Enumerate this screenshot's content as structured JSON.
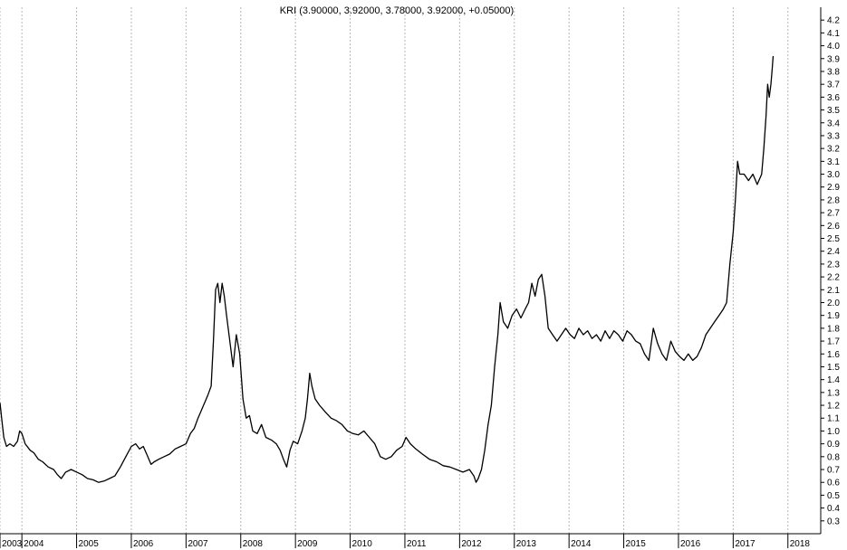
{
  "chart_data": {
    "type": "line",
    "title": "KRI (3.90000, 3.92000, 3.78000, 3.92000, +0.05000)",
    "xlabel": "",
    "ylabel": "",
    "xlim": [
      2003.0,
      2018.0
    ],
    "ylim": [
      0.2,
      4.3
    ],
    "y_ticks": [
      0.3,
      0.4,
      0.5,
      0.6,
      0.7,
      0.8,
      0.9,
      1.0,
      1.1,
      1.2,
      1.3,
      1.4,
      1.5,
      1.6,
      1.7,
      1.8,
      1.9,
      2.0,
      2.1,
      2.2,
      2.3,
      2.4,
      2.5,
      2.6,
      2.7,
      2.8,
      2.9,
      3.0,
      3.1,
      3.2,
      3.3,
      3.4,
      3.5,
      3.6,
      3.7,
      3.8,
      3.9,
      4.0,
      4.1,
      4.2
    ],
    "x_ticks": [
      {
        "label": "2003",
        "x": 2003.0
      },
      {
        "label": "2004",
        "x": 2003.4
      },
      {
        "label": "2005",
        "x": 2004.4
      },
      {
        "label": "2006",
        "x": 2005.4
      },
      {
        "label": "2007",
        "x": 2006.4
      },
      {
        "label": "2008",
        "x": 2007.4
      },
      {
        "label": "2009",
        "x": 2008.4
      },
      {
        "label": "2010",
        "x": 2009.4
      },
      {
        "label": "2011",
        "x": 2010.4
      },
      {
        "label": "2012",
        "x": 2011.4
      },
      {
        "label": "2013",
        "x": 2012.4
      },
      {
        "label": "2014",
        "x": 2013.4
      },
      {
        "label": "2015",
        "x": 2014.4
      },
      {
        "label": "2016",
        "x": 2015.4
      },
      {
        "label": "2017",
        "x": 2016.4
      },
      {
        "label": "2018",
        "x": 2017.4
      }
    ],
    "grid": {
      "vertical": true,
      "horizontal": false
    },
    "series": [
      {
        "color": "#000000",
        "points": [
          [
            2003.0,
            1.22
          ],
          [
            2003.03,
            1.1
          ],
          [
            2003.07,
            0.95
          ],
          [
            2003.12,
            0.88
          ],
          [
            2003.18,
            0.9
          ],
          [
            2003.25,
            0.88
          ],
          [
            2003.32,
            0.92
          ],
          [
            2003.36,
            1.0
          ],
          [
            2003.4,
            0.98
          ],
          [
            2003.46,
            0.9
          ],
          [
            2003.55,
            0.85
          ],
          [
            2003.62,
            0.83
          ],
          [
            2003.7,
            0.78
          ],
          [
            2003.78,
            0.76
          ],
          [
            2003.88,
            0.72
          ],
          [
            2003.98,
            0.7
          ],
          [
            2004.05,
            0.66
          ],
          [
            2004.12,
            0.63
          ],
          [
            2004.2,
            0.68
          ],
          [
            2004.3,
            0.7
          ],
          [
            2004.4,
            0.68
          ],
          [
            2004.5,
            0.66
          ],
          [
            2004.6,
            0.63
          ],
          [
            2004.7,
            0.62
          ],
          [
            2004.8,
            0.6
          ],
          [
            2004.9,
            0.61
          ],
          [
            2005.0,
            0.63
          ],
          [
            2005.1,
            0.65
          ],
          [
            2005.2,
            0.72
          ],
          [
            2005.3,
            0.8
          ],
          [
            2005.4,
            0.88
          ],
          [
            2005.48,
            0.9
          ],
          [
            2005.55,
            0.86
          ],
          [
            2005.62,
            0.88
          ],
          [
            2005.7,
            0.8
          ],
          [
            2005.76,
            0.74
          ],
          [
            2005.82,
            0.76
          ],
          [
            2005.9,
            0.78
          ],
          [
            2006.0,
            0.8
          ],
          [
            2006.1,
            0.82
          ],
          [
            2006.2,
            0.86
          ],
          [
            2006.3,
            0.88
          ],
          [
            2006.4,
            0.9
          ],
          [
            2006.48,
            0.98
          ],
          [
            2006.55,
            1.02
          ],
          [
            2006.62,
            1.1
          ],
          [
            2006.72,
            1.2
          ],
          [
            2006.8,
            1.28
          ],
          [
            2006.86,
            1.35
          ],
          [
            2006.9,
            1.7
          ],
          [
            2006.94,
            2.1
          ],
          [
            2006.98,
            2.15
          ],
          [
            2007.02,
            2.0
          ],
          [
            2007.06,
            2.15
          ],
          [
            2007.1,
            2.05
          ],
          [
            2007.14,
            1.9
          ],
          [
            2007.2,
            1.7
          ],
          [
            2007.26,
            1.5
          ],
          [
            2007.32,
            1.75
          ],
          [
            2007.38,
            1.6
          ],
          [
            2007.44,
            1.25
          ],
          [
            2007.5,
            1.1
          ],
          [
            2007.56,
            1.12
          ],
          [
            2007.62,
            1.0
          ],
          [
            2007.7,
            0.98
          ],
          [
            2007.78,
            1.05
          ],
          [
            2007.86,
            0.95
          ],
          [
            2007.96,
            0.93
          ],
          [
            2008.05,
            0.9
          ],
          [
            2008.12,
            0.85
          ],
          [
            2008.18,
            0.78
          ],
          [
            2008.24,
            0.72
          ],
          [
            2008.3,
            0.85
          ],
          [
            2008.36,
            0.92
          ],
          [
            2008.44,
            0.9
          ],
          [
            2008.52,
            1.0
          ],
          [
            2008.58,
            1.1
          ],
          [
            2008.62,
            1.25
          ],
          [
            2008.66,
            1.45
          ],
          [
            2008.7,
            1.35
          ],
          [
            2008.76,
            1.25
          ],
          [
            2008.84,
            1.2
          ],
          [
            2008.94,
            1.15
          ],
          [
            2009.05,
            1.1
          ],
          [
            2009.15,
            1.08
          ],
          [
            2009.25,
            1.05
          ],
          [
            2009.35,
            1.0
          ],
          [
            2009.45,
            0.98
          ],
          [
            2009.55,
            0.97
          ],
          [
            2009.65,
            1.0
          ],
          [
            2009.75,
            0.95
          ],
          [
            2009.85,
            0.9
          ],
          [
            2009.95,
            0.8
          ],
          [
            2010.05,
            0.78
          ],
          [
            2010.15,
            0.8
          ],
          [
            2010.25,
            0.85
          ],
          [
            2010.35,
            0.88
          ],
          [
            2010.42,
            0.95
          ],
          [
            2010.5,
            0.9
          ],
          [
            2010.6,
            0.86
          ],
          [
            2010.72,
            0.82
          ],
          [
            2010.85,
            0.78
          ],
          [
            2010.98,
            0.76
          ],
          [
            2011.1,
            0.73
          ],
          [
            2011.22,
            0.72
          ],
          [
            2011.34,
            0.7
          ],
          [
            2011.46,
            0.68
          ],
          [
            2011.58,
            0.7
          ],
          [
            2011.66,
            0.65
          ],
          [
            2011.7,
            0.6
          ],
          [
            2011.74,
            0.63
          ],
          [
            2011.8,
            0.7
          ],
          [
            2011.86,
            0.85
          ],
          [
            2011.92,
            1.05
          ],
          [
            2011.98,
            1.2
          ],
          [
            2012.04,
            1.5
          ],
          [
            2012.1,
            1.75
          ],
          [
            2012.14,
            2.0
          ],
          [
            2012.2,
            1.85
          ],
          [
            2012.28,
            1.8
          ],
          [
            2012.36,
            1.9
          ],
          [
            2012.44,
            1.95
          ],
          [
            2012.52,
            1.88
          ],
          [
            2012.6,
            1.95
          ],
          [
            2012.66,
            2.0
          ],
          [
            2012.72,
            2.15
          ],
          [
            2012.78,
            2.05
          ],
          [
            2012.84,
            2.18
          ],
          [
            2012.9,
            2.22
          ],
          [
            2012.96,
            2.05
          ],
          [
            2013.02,
            1.8
          ],
          [
            2013.1,
            1.75
          ],
          [
            2013.18,
            1.7
          ],
          [
            2013.26,
            1.75
          ],
          [
            2013.34,
            1.8
          ],
          [
            2013.42,
            1.75
          ],
          [
            2013.5,
            1.72
          ],
          [
            2013.58,
            1.8
          ],
          [
            2013.66,
            1.75
          ],
          [
            2013.74,
            1.78
          ],
          [
            2013.82,
            1.72
          ],
          [
            2013.9,
            1.75
          ],
          [
            2013.98,
            1.7
          ],
          [
            2014.06,
            1.78
          ],
          [
            2014.14,
            1.72
          ],
          [
            2014.22,
            1.78
          ],
          [
            2014.3,
            1.75
          ],
          [
            2014.38,
            1.7
          ],
          [
            2014.46,
            1.78
          ],
          [
            2014.54,
            1.75
          ],
          [
            2014.62,
            1.7
          ],
          [
            2014.7,
            1.68
          ],
          [
            2014.78,
            1.6
          ],
          [
            2014.86,
            1.55
          ],
          [
            2014.94,
            1.8
          ],
          [
            2015.02,
            1.68
          ],
          [
            2015.1,
            1.6
          ],
          [
            2015.18,
            1.55
          ],
          [
            2015.26,
            1.7
          ],
          [
            2015.34,
            1.62
          ],
          [
            2015.42,
            1.58
          ],
          [
            2015.5,
            1.55
          ],
          [
            2015.58,
            1.6
          ],
          [
            2015.66,
            1.55
          ],
          [
            2015.74,
            1.58
          ],
          [
            2015.82,
            1.65
          ],
          [
            2015.9,
            1.75
          ],
          [
            2015.98,
            1.8
          ],
          [
            2016.06,
            1.85
          ],
          [
            2016.14,
            1.9
          ],
          [
            2016.22,
            1.95
          ],
          [
            2016.28,
            2.0
          ],
          [
            2016.34,
            2.3
          ],
          [
            2016.4,
            2.55
          ],
          [
            2016.44,
            2.8
          ],
          [
            2016.48,
            3.1
          ],
          [
            2016.52,
            3.0
          ],
          [
            2016.6,
            3.0
          ],
          [
            2016.68,
            2.95
          ],
          [
            2016.76,
            3.0
          ],
          [
            2016.84,
            2.92
          ],
          [
            2016.92,
            3.0
          ],
          [
            2016.96,
            3.2
          ],
          [
            2017.0,
            3.45
          ],
          [
            2017.03,
            3.7
          ],
          [
            2017.06,
            3.6
          ],
          [
            2017.09,
            3.7
          ],
          [
            2017.11,
            3.8
          ],
          [
            2017.13,
            3.92
          ]
        ]
      }
    ]
  }
}
